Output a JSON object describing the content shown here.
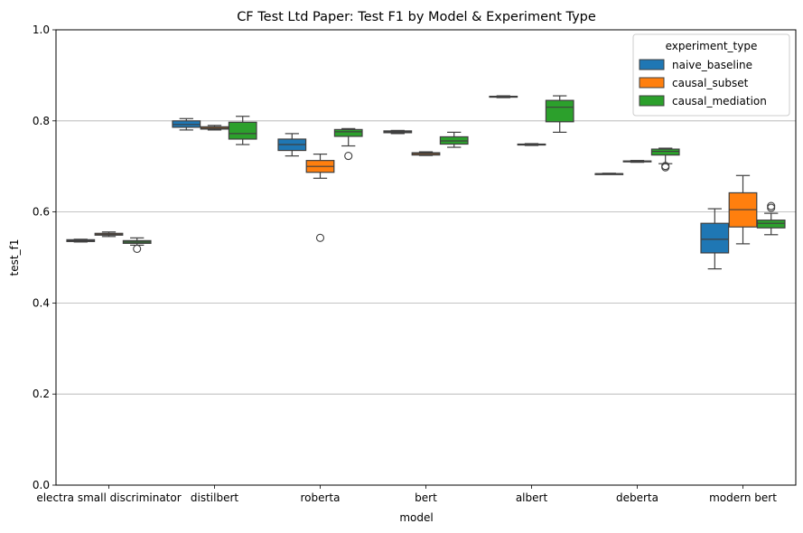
{
  "chart_data": {
    "type": "box",
    "title": "CF Test Ltd Paper: Test F1 by Model & Experiment Type",
    "xlabel": "model",
    "ylabel": "test_f1",
    "ylim": [
      0,
      1.0
    ],
    "yticks": [
      0.0,
      0.2,
      0.4,
      0.6,
      0.8,
      1.0
    ],
    "ytick_labels": [
      "0.0",
      "0.2",
      "0.4",
      "0.6",
      "0.8",
      "1.0"
    ],
    "grid": "horizontal",
    "legend": {
      "title": "experiment_type",
      "position": "top-right"
    },
    "categories": [
      "electra small discriminator",
      "distilbert",
      "roberta",
      "bert",
      "albert",
      "deberta",
      "modern bert"
    ],
    "series": [
      {
        "name": "naive_baseline",
        "color": "#1f77b4",
        "boxes": [
          {
            "min": 0.534,
            "q1": 0.535,
            "median": 0.537,
            "q3": 0.539,
            "max": 0.54,
            "outliers": []
          },
          {
            "min": 0.78,
            "q1": 0.786,
            "median": 0.792,
            "q3": 0.8,
            "max": 0.805,
            "outliers": []
          },
          {
            "min": 0.723,
            "q1": 0.735,
            "median": 0.748,
            "q3": 0.76,
            "max": 0.772,
            "outliers": []
          },
          {
            "min": 0.772,
            "q1": 0.774,
            "median": 0.776,
            "q3": 0.778,
            "max": 0.779,
            "outliers": []
          },
          {
            "min": 0.851,
            "q1": 0.852,
            "median": 0.853,
            "q3": 0.854,
            "max": 0.855,
            "outliers": []
          },
          {
            "min": 0.683,
            "q1": 0.683,
            "median": 0.684,
            "q3": 0.684,
            "max": 0.685,
            "outliers": []
          },
          {
            "min": 0.475,
            "q1": 0.51,
            "median": 0.54,
            "q3": 0.575,
            "max": 0.607,
            "outliers": []
          }
        ]
      },
      {
        "name": "causal_subset",
        "color": "#ff7f0e",
        "boxes": [
          {
            "min": 0.546,
            "q1": 0.549,
            "median": 0.551,
            "q3": 0.553,
            "max": 0.556,
            "outliers": []
          },
          {
            "min": 0.78,
            "q1": 0.782,
            "median": 0.784,
            "q3": 0.787,
            "max": 0.79,
            "outliers": []
          },
          {
            "min": 0.674,
            "q1": 0.687,
            "median": 0.7,
            "q3": 0.713,
            "max": 0.727,
            "outliers": [
              0.543
            ]
          },
          {
            "min": 0.724,
            "q1": 0.725,
            "median": 0.728,
            "q3": 0.73,
            "max": 0.732,
            "outliers": []
          },
          {
            "min": 0.746,
            "q1": 0.747,
            "median": 0.748,
            "q3": 0.749,
            "max": 0.75,
            "outliers": []
          },
          {
            "min": 0.709,
            "q1": 0.71,
            "median": 0.711,
            "q3": 0.712,
            "max": 0.713,
            "outliers": []
          },
          {
            "min": 0.53,
            "q1": 0.567,
            "median": 0.605,
            "q3": 0.642,
            "max": 0.68,
            "outliers": []
          }
        ]
      },
      {
        "name": "causal_mediation",
        "color": "#2ca02c",
        "boxes": [
          {
            "min": 0.527,
            "q1": 0.531,
            "median": 0.534,
            "q3": 0.537,
            "max": 0.543,
            "outliers": [
              0.519
            ]
          },
          {
            "min": 0.748,
            "q1": 0.76,
            "median": 0.772,
            "q3": 0.797,
            "max": 0.81,
            "outliers": []
          },
          {
            "min": 0.745,
            "q1": 0.766,
            "median": 0.776,
            "q3": 0.781,
            "max": 0.783,
            "outliers": [
              0.723
            ]
          },
          {
            "min": 0.742,
            "q1": 0.749,
            "median": 0.756,
            "q3": 0.765,
            "max": 0.775,
            "outliers": []
          },
          {
            "min": 0.775,
            "q1": 0.798,
            "median": 0.83,
            "q3": 0.845,
            "max": 0.855,
            "outliers": []
          },
          {
            "min": 0.706,
            "q1": 0.725,
            "median": 0.733,
            "q3": 0.738,
            "max": 0.74,
            "outliers": [
              0.698,
              0.701
            ]
          },
          {
            "min": 0.55,
            "q1": 0.565,
            "median": 0.575,
            "q3": 0.582,
            "max": 0.597,
            "outliers": [
              0.609,
              0.613
            ]
          }
        ]
      }
    ]
  }
}
